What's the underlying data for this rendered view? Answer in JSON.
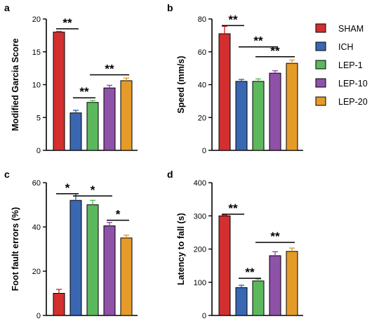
{
  "colors": {
    "SHAM": "#d32f2f",
    "ICH": "#3a67b2",
    "LEP-1": "#5cb85c",
    "LEP-10": "#8e52a8",
    "LEP-20": "#e59b2a"
  },
  "legend": [
    "SHAM",
    "ICH",
    "LEP-1",
    "LEP-10",
    "LEP-20"
  ],
  "chart_data": [
    {
      "type": "bar",
      "panel": "a",
      "ylabel": "Modified Garcia Score",
      "ylim": [
        0,
        20
      ],
      "yticks": [
        0,
        5,
        10,
        15,
        20
      ],
      "categories": [
        "SHAM",
        "ICH",
        "LEP-1",
        "LEP-10",
        "LEP-20"
      ],
      "values": [
        18.0,
        5.7,
        7.3,
        9.5,
        10.6
      ],
      "errors": [
        0.1,
        0.4,
        0.3,
        0.4,
        0.4
      ],
      "significance": [
        {
          "from": 0,
          "to": 1,
          "label": "**",
          "y": 18.5
        },
        {
          "from": 1,
          "to": 2,
          "label": "**",
          "y": 8.0
        },
        {
          "from": 2,
          "to": 4,
          "label": "**",
          "y": 11.5
        }
      ]
    },
    {
      "type": "bar",
      "panel": "b",
      "ylabel": "Speed (mm/s)",
      "ylim": [
        0,
        80
      ],
      "yticks": [
        0,
        20,
        40,
        60,
        80
      ],
      "categories": [
        "SHAM",
        "ICH",
        "LEP-1",
        "LEP-10",
        "LEP-20"
      ],
      "values": [
        71,
        42,
        42,
        47,
        53
      ],
      "errors": [
        4.5,
        1.2,
        1.5,
        1.5,
        2.0
      ],
      "significance": [
        {
          "from": 0,
          "to": 1,
          "label": "**",
          "y": 76
        },
        {
          "from": 1,
          "to": 3,
          "label": "**",
          "y": 63
        },
        {
          "from": 2,
          "to": 4,
          "label": "**",
          "y": 57
        }
      ]
    },
    {
      "type": "bar",
      "panel": "c",
      "ylabel": "Foot fault errors (%)",
      "ylim": [
        0,
        60
      ],
      "yticks": [
        0,
        20,
        40,
        60
      ],
      "categories": [
        "SHAM",
        "ICH",
        "LEP-1",
        "LEP-10",
        "LEP-20"
      ],
      "values": [
        10,
        52,
        50,
        40.5,
        35
      ],
      "errors": [
        1.8,
        3.0,
        2.0,
        1.5,
        1.3
      ],
      "significance": [
        {
          "from": 0,
          "to": 1,
          "label": "*",
          "y": 55
        },
        {
          "from": 1,
          "to": 3,
          "label": "*",
          "y": 54
        },
        {
          "from": 3,
          "to": 4,
          "label": "*",
          "y": 43
        }
      ]
    },
    {
      "type": "bar",
      "panel": "d",
      "ylabel": "Latency to fall (s)",
      "ylim": [
        0,
        400
      ],
      "yticks": [
        0,
        100,
        200,
        300,
        400
      ],
      "categories": [
        "SHAM",
        "ICH",
        "LEP-1",
        "LEP-10",
        "LEP-20"
      ],
      "values": [
        300,
        84,
        104,
        180,
        193
      ],
      "errors": [
        2,
        7,
        6,
        12,
        10
      ],
      "significance": [
        {
          "from": 0,
          "to": 1,
          "label": "**",
          "y": 305
        },
        {
          "from": 1,
          "to": 2,
          "label": "**",
          "y": 112
        },
        {
          "from": 2,
          "to": 4,
          "label": "**",
          "y": 220
        }
      ]
    }
  ]
}
